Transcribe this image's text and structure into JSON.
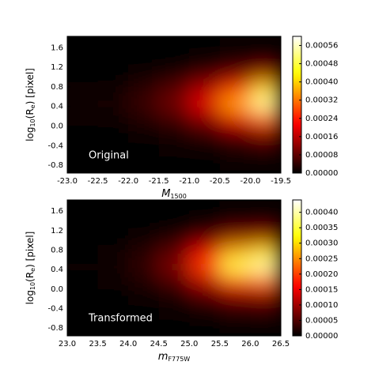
{
  "chart_data": [
    {
      "type": "heatmap",
      "colormap": "hot",
      "annotation": "Original",
      "x_label": {
        "text": "M",
        "sub": "1500"
      },
      "y_label": {
        "parts": [
          "log",
          "10",
          "(R",
          "e",
          ") [pixel]"
        ]
      },
      "x": [
        -22.75,
        -22.25,
        -21.75,
        -21.25,
        -20.75,
        -20.25,
        -19.75
      ],
      "y": [
        1.65,
        1.35,
        1.05,
        0.75,
        0.45,
        0.15,
        -0.15,
        -0.45,
        -0.75
      ],
      "z": [
        [
          0,
          0,
          0,
          0,
          4e-06,
          7e-06,
          1.1e-05
        ],
        [
          0,
          0,
          3e-06,
          5e-06,
          1e-05,
          1.8e-05,
          2.7e-05
        ],
        [
          3e-06,
          5e-06,
          1.3e-05,
          2.5e-05,
          5e-05,
          9e-05,
          0.000135
        ],
        [
          8e-06,
          1.5e-05,
          3.8e-05,
          7.5e-05,
          0.00015,
          0.00027,
          0.0004
        ],
        [
          1e-05,
          2e-05,
          5e-05,
          0.0001,
          0.0002,
          0.00036,
          0.00054
        ],
        [
          6e-06,
          1.1e-05,
          2.8e-05,
          5.5e-05,
          0.00011,
          0.0002,
          0.0003
        ],
        [
          2e-06,
          4e-06,
          1e-05,
          2e-05,
          4e-05,
          7.2e-05,
          0.000108
        ],
        [
          0,
          1e-06,
          3e-06,
          6e-06,
          1.2e-05,
          2.2e-05,
          3.2e-05
        ],
        [
          0,
          0,
          1e-06,
          2e-06,
          4e-06,
          7e-06,
          1.1e-05
        ]
      ],
      "xlim": [
        -23.0,
        -19.5
      ],
      "xticks": [
        {
          "value": -23,
          "label": "-23.0"
        },
        -22.5,
        {
          "value": -22,
          "label": "-22.0"
        },
        -21.5,
        {
          "value": -21,
          "label": "-21.0"
        },
        -20.5,
        {
          "value": -20,
          "label": "-20.0"
        },
        -19.5
      ],
      "ylim": [
        -0.96,
        1.83
      ],
      "yticks": [
        -0.8,
        -0.4,
        {
          "value": 0,
          "label": "0.0"
        },
        0.4,
        0.8,
        1.2,
        1.6
      ],
      "clim": [
        0,
        0.0006
      ],
      "cticks": [
        {
          "value": 0,
          "label": "0.00000"
        },
        {
          "value": 8e-05,
          "label": "0.00008"
        },
        {
          "value": 0.00016,
          "label": "0.00016"
        },
        {
          "value": 0.00024,
          "label": "0.00024"
        },
        {
          "value": 0.00032,
          "label": "0.00032"
        },
        {
          "value": 0.0004,
          "label": "0.00040"
        },
        {
          "value": 0.00048,
          "label": "0.00048"
        },
        {
          "value": 0.00056,
          "label": "0.00056"
        }
      ]
    },
    {
      "type": "heatmap",
      "colormap": "hot",
      "annotation": "Transformed",
      "x_label": {
        "text": "m",
        "sub": "F775W"
      },
      "y_label": {
        "parts": [
          "log",
          "10",
          "(R",
          "e",
          ") [pixel]"
        ]
      },
      "x": [
        23.25,
        23.75,
        24.25,
        24.75,
        25.25,
        25.75,
        26.25
      ],
      "y": [
        1.65,
        1.35,
        1.05,
        0.75,
        0.45,
        0.15,
        -0.15,
        -0.45,
        -0.75
      ],
      "z": [
        [
          0,
          0,
          1e-06,
          2e-06,
          4e-06,
          7e-06,
          8e-06
        ],
        [
          0,
          1e-06,
          2e-06,
          4e-06,
          1e-05,
          1.8e-05,
          2e-05
        ],
        [
          1e-06,
          3e-06,
          8e-06,
          2e-05,
          5e-05,
          9e-05,
          0.0001
        ],
        [
          4e-06,
          8e-06,
          2.3e-05,
          6e-05,
          0.00015,
          0.00027,
          0.0003
        ],
        [
          5e-06,
          1e-05,
          3e-05,
          8e-05,
          0.0002,
          0.00036,
          0.0004
        ],
        [
          3e-06,
          6e-06,
          1.7e-05,
          4.4e-05,
          0.00011,
          0.0002,
          0.00022
        ],
        [
          1e-06,
          2e-06,
          6e-06,
          1.6e-05,
          4e-05,
          7.2e-05,
          8e-05
        ],
        [
          0,
          1e-06,
          2e-06,
          5e-06,
          1.2e-05,
          2.2e-05,
          2.4e-05
        ],
        [
          0,
          0,
          1e-06,
          2e-06,
          4e-06,
          7e-06,
          8e-06
        ]
      ],
      "xlim": [
        23.0,
        26.5
      ],
      "xticks": [
        {
          "value": 23,
          "label": "23.0"
        },
        23.5,
        {
          "value": 24,
          "label": "24.0"
        },
        24.5,
        {
          "value": 25,
          "label": "25.0"
        },
        25.5,
        {
          "value": 26,
          "label": "26.0"
        },
        26.5
      ],
      "ylim": [
        -0.96,
        1.83
      ],
      "yticks": [
        -0.8,
        -0.4,
        {
          "value": 0,
          "label": "0.0"
        },
        0.4,
        0.8,
        1.2,
        1.6
      ],
      "clim": [
        0,
        0.00044
      ],
      "cticks": [
        {
          "value": 0,
          "label": "0.00000"
        },
        {
          "value": 5e-05,
          "label": "0.00005"
        },
        {
          "value": 0.0001,
          "label": "0.00010"
        },
        {
          "value": 0.00015,
          "label": "0.00015"
        },
        {
          "value": 0.0002,
          "label": "0.00020"
        },
        {
          "value": 0.00025,
          "label": "0.00025"
        },
        {
          "value": 0.0003,
          "label": "0.00030"
        },
        {
          "value": 0.00035,
          "label": "0.00035"
        },
        {
          "value": 0.0004,
          "label": "0.00040"
        }
      ]
    }
  ]
}
